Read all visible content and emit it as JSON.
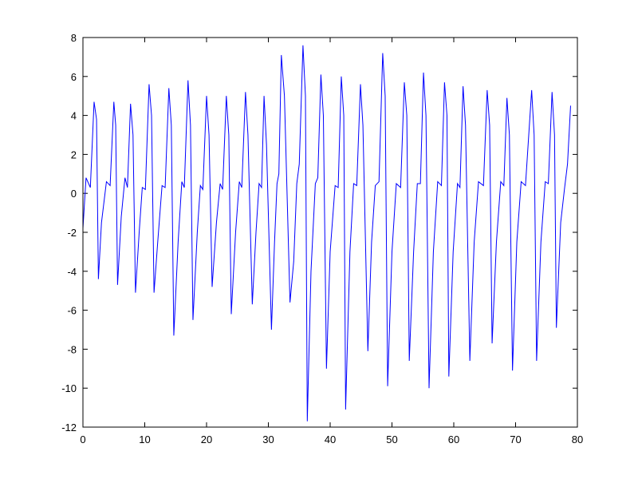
{
  "chart_data": {
    "type": "line",
    "color": "#0000ff",
    "x": [
      0,
      0.5,
      1.2,
      1.8,
      2.2,
      2.5,
      3.0,
      3.8,
      4.4,
      5.0,
      5.3,
      5.6,
      6.2,
      6.8,
      7.2,
      7.7,
      8.1,
      8.5,
      9.1,
      9.6,
      10.1,
      10.7,
      11.1,
      11.5,
      12.1,
      12.8,
      13.3,
      13.9,
      14.3,
      14.7,
      15.4,
      16.0,
      16.4,
      17.0,
      17.4,
      17.8,
      18.5,
      19.0,
      19.4,
      20.0,
      20.4,
      20.9,
      21.6,
      22.2,
      22.6,
      23.2,
      23.6,
      24.0,
      24.7,
      25.3,
      25.7,
      26.3,
      26.7,
      27.4,
      28.0,
      28.5,
      28.9,
      29.3,
      29.7,
      30.5,
      31.0,
      31.4,
      31.7,
      32.1,
      32.6,
      33.5,
      34.1,
      34.6,
      35.0,
      35.6,
      36.0,
      36.3,
      36.9,
      37.6,
      38.0,
      38.5,
      38.9,
      39.4,
      40.0,
      40.8,
      41.3,
      41.8,
      42.2,
      42.5,
      43.2,
      43.8,
      44.3,
      44.9,
      45.3,
      46.1,
      46.7,
      47.3,
      47.9,
      48.5,
      48.9,
      49.3,
      50.0,
      50.7,
      51.4,
      52.0,
      52.4,
      52.8,
      53.5,
      54.1,
      54.6,
      55.1,
      55.5,
      56.0,
      56.7,
      57.4,
      58.0,
      58.5,
      58.9,
      59.2,
      59.9,
      60.6,
      61.0,
      61.5,
      61.9,
      62.6,
      63.3,
      64.0,
      64.8,
      65.4,
      65.8,
      66.2,
      66.9,
      67.6,
      68.1,
      68.6,
      69.0,
      69.5,
      70.2,
      70.9,
      71.6,
      72.6,
      73.0,
      73.4,
      74.1,
      74.8,
      75.3,
      75.9,
      76.3,
      76.6,
      77.3,
      77.9,
      78.4,
      78.9
    ],
    "values": [
      -1.8,
      0.8,
      0.3,
      4.7,
      3.8,
      -4.4,
      -1.5,
      0.6,
      0.4,
      4.7,
      3.5,
      -4.7,
      -1.2,
      0.8,
      0.3,
      4.6,
      3.0,
      -5.1,
      -2.0,
      0.3,
      0.2,
      5.6,
      4.0,
      -5.1,
      -2.5,
      0.4,
      0.3,
      5.4,
      3.5,
      -7.3,
      -2.5,
      0.6,
      0.3,
      5.8,
      3.5,
      -6.5,
      -2.0,
      0.4,
      0.2,
      5.0,
      3.0,
      -4.8,
      -1.5,
      0.5,
      0.2,
      5.0,
      3.0,
      -6.2,
      -2.0,
      0.6,
      0.3,
      5.2,
      3.0,
      -5.7,
      -2.0,
      0.5,
      0.3,
      5.0,
      2.5,
      -7.0,
      -2.5,
      0.5,
      1.0,
      7.1,
      5.0,
      -5.6,
      -3.5,
      0.5,
      1.5,
      7.6,
      5.0,
      -11.7,
      -4.0,
      0.5,
      0.8,
      6.1,
      4.0,
      -9.0,
      -3.0,
      0.4,
      0.3,
      6.0,
      4.0,
      -11.1,
      -3.0,
      0.5,
      0.4,
      5.6,
      3.5,
      -8.1,
      -2.5,
      0.4,
      0.6,
      7.2,
      5.0,
      -9.9,
      -3.0,
      0.5,
      0.3,
      5.7,
      4.0,
      -8.6,
      -3.0,
      0.5,
      0.5,
      6.2,
      4.0,
      -10.0,
      -3.0,
      0.6,
      0.4,
      5.7,
      4.0,
      -9.4,
      -3.0,
      0.5,
      0.3,
      5.5,
      3.5,
      -8.6,
      -2.5,
      0.6,
      0.4,
      5.3,
      3.5,
      -7.7,
      -2.5,
      0.6,
      0.4,
      4.9,
      3.0,
      -9.1,
      -2.5,
      0.6,
      0.4,
      5.3,
      3.0,
      -8.6,
      -2.5,
      0.6,
      0.5,
      5.2,
      3.0,
      -6.9,
      -1.5,
      0.2,
      1.5,
      4.5
    ],
    "xlim": [
      0,
      80
    ],
    "xticks": [
      0,
      10,
      20,
      30,
      40,
      50,
      60,
      70,
      80
    ],
    "ylim": [
      -12,
      8
    ],
    "yticks": [
      -12,
      -10,
      -8,
      -6,
      -4,
      -2,
      0,
      2,
      4,
      6,
      8
    ]
  }
}
